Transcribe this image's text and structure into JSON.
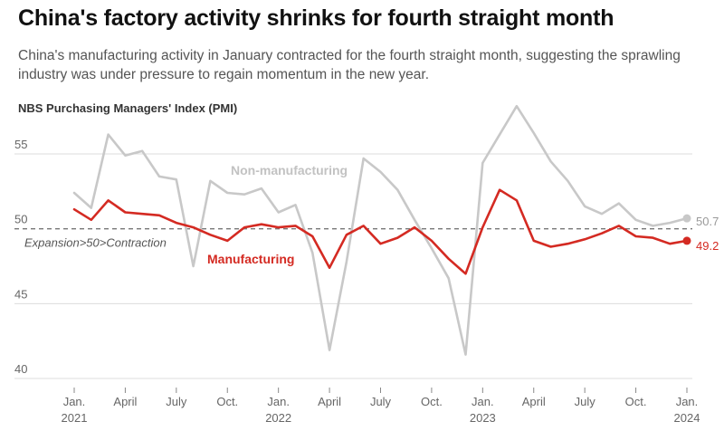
{
  "title": "China's factory activity shrinks for fourth straight month",
  "subtitle": "China's manufacturing activity in January contracted for the fourth straight month, suggesting the sprawling industry was under pressure to regain momentum in the new year.",
  "chart_data": {
    "type": "line",
    "title": "NBS Purchasing Managers' Index (PMI)",
    "x": [
      "2021-01",
      "2021-02",
      "2021-03",
      "2021-04",
      "2021-05",
      "2021-06",
      "2021-07",
      "2021-08",
      "2021-09",
      "2021-10",
      "2021-11",
      "2021-12",
      "2022-01",
      "2022-02",
      "2022-03",
      "2022-04",
      "2022-05",
      "2022-06",
      "2022-07",
      "2022-08",
      "2022-09",
      "2022-10",
      "2022-11",
      "2022-12",
      "2023-01",
      "2023-02",
      "2023-03",
      "2023-04",
      "2023-05",
      "2023-06",
      "2023-07",
      "2023-08",
      "2023-09",
      "2023-10",
      "2023-11",
      "2023-12",
      "2024-01"
    ],
    "xticks": [
      {
        "x": "2021-01",
        "label": "Jan.",
        "year": "2021"
      },
      {
        "x": "2021-04",
        "label": "April"
      },
      {
        "x": "2021-07",
        "label": "July"
      },
      {
        "x": "2021-10",
        "label": "Oct."
      },
      {
        "x": "2022-01",
        "label": "Jan.",
        "year": "2022"
      },
      {
        "x": "2022-04",
        "label": "April"
      },
      {
        "x": "2022-07",
        "label": "July"
      },
      {
        "x": "2022-10",
        "label": "Oct."
      },
      {
        "x": "2023-01",
        "label": "Jan.",
        "year": "2023"
      },
      {
        "x": "2023-04",
        "label": "April"
      },
      {
        "x": "2023-07",
        "label": "July"
      },
      {
        "x": "2023-10",
        "label": "Oct."
      },
      {
        "x": "2024-01",
        "label": "Jan.",
        "year": "2024"
      }
    ],
    "yticks": [
      40,
      45,
      50,
      55
    ],
    "ylim": [
      40,
      57
    ],
    "grid": true,
    "reference_line": {
      "value": 50,
      "label": "Expansion>50>Contraction"
    },
    "series": [
      {
        "name": "Non-manufacturing",
        "color": "#c8c8c8",
        "end_label": "50.7",
        "values": [
          52.4,
          51.4,
          56.3,
          54.9,
          55.2,
          53.5,
          53.3,
          47.5,
          53.2,
          52.4,
          52.3,
          52.7,
          51.1,
          51.6,
          48.4,
          41.9,
          47.8,
          54.7,
          53.8,
          52.6,
          50.6,
          48.7,
          46.7,
          41.6,
          54.4,
          56.3,
          58.2,
          56.4,
          54.5,
          53.2,
          51.5,
          51.0,
          51.7,
          50.6,
          50.2,
          50.4,
          50.7
        ]
      },
      {
        "name": "Manufacturing",
        "color": "#d42a22",
        "end_label": "49.2",
        "values": [
          51.3,
          50.6,
          51.9,
          51.1,
          51.0,
          50.9,
          50.4,
          50.1,
          49.6,
          49.2,
          50.1,
          50.3,
          50.1,
          50.2,
          49.5,
          47.4,
          49.6,
          50.2,
          49.0,
          49.4,
          50.1,
          49.2,
          48.0,
          47.0,
          50.1,
          52.6,
          51.9,
          49.2,
          48.8,
          49.0,
          49.3,
          49.7,
          50.2,
          49.5,
          49.4,
          49.0,
          49.2
        ]
      }
    ]
  }
}
